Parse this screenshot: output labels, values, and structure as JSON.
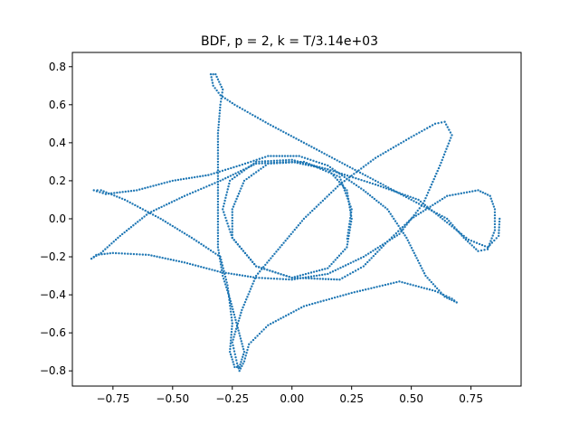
{
  "chart_data": {
    "type": "scatter",
    "title": "BDF, p = 2, k = T/3.14e+03",
    "xlabel": "",
    "ylabel": "",
    "xlim": [
      -0.92,
      0.96
    ],
    "ylim": [
      -0.88,
      0.875
    ],
    "xticks": [
      -0.75,
      -0.5,
      -0.25,
      0.0,
      0.25,
      0.5,
      0.75
    ],
    "xtick_labels": [
      "−0.75",
      "−0.50",
      "−0.25",
      "0.00",
      "0.25",
      "0.50",
      "0.75"
    ],
    "yticks": [
      -0.8,
      -0.6,
      -0.4,
      -0.2,
      0.0,
      0.2,
      0.4,
      0.6,
      0.8
    ],
    "ytick_labels": [
      "−0.8",
      "−0.6",
      "−0.4",
      "−0.2",
      "0.0",
      "0.2",
      "0.4",
      "0.6",
      "0.8"
    ],
    "grid": false,
    "legend": "none",
    "series": [
      {
        "color": "#1f77b4",
        "points": [
          [
            0.87,
            0.0
          ],
          [
            0.866,
            -0.09
          ],
          [
            0.82,
            -0.15
          ],
          [
            0.74,
            -0.11
          ],
          [
            0.65,
            -0.02
          ],
          [
            0.53,
            0.1
          ],
          [
            0.35,
            0.18
          ],
          [
            0.15,
            0.26
          ],
          [
            0.0,
            0.3
          ],
          [
            -0.15,
            0.29
          ],
          [
            -0.3,
            0.2
          ],
          [
            -0.45,
            0.12
          ],
          [
            -0.6,
            0.03
          ],
          [
            -0.72,
            -0.09
          ],
          [
            -0.8,
            -0.18
          ],
          [
            -0.84,
            -0.21
          ],
          [
            -0.82,
            -0.19
          ],
          [
            -0.75,
            -0.18
          ],
          [
            -0.6,
            -0.19
          ],
          [
            -0.45,
            -0.23
          ],
          [
            -0.3,
            -0.28
          ],
          [
            -0.15,
            -0.31
          ],
          [
            0.0,
            -0.32
          ],
          [
            0.15,
            -0.29
          ],
          [
            0.3,
            -0.2
          ],
          [
            0.45,
            -0.08
          ],
          [
            0.55,
            0.08
          ],
          [
            0.62,
            0.28
          ],
          [
            0.67,
            0.44
          ],
          [
            0.64,
            0.51
          ],
          [
            0.6,
            0.5
          ],
          [
            0.5,
            0.43
          ],
          [
            0.35,
            0.32
          ],
          [
            0.2,
            0.18
          ],
          [
            0.05,
            0.0
          ],
          [
            -0.05,
            -0.15
          ],
          [
            -0.15,
            -0.3
          ],
          [
            -0.21,
            -0.48
          ],
          [
            -0.25,
            -0.65
          ],
          [
            -0.23,
            -0.76
          ],
          [
            -0.22,
            -0.8
          ],
          [
            -0.2,
            -0.75
          ],
          [
            -0.18,
            -0.66
          ],
          [
            -0.1,
            -0.56
          ],
          [
            0.05,
            -0.46
          ],
          [
            0.25,
            -0.39
          ],
          [
            0.45,
            -0.33
          ],
          [
            0.6,
            -0.38
          ],
          [
            0.67,
            -0.42
          ],
          [
            0.69,
            -0.44
          ],
          [
            0.64,
            -0.41
          ],
          [
            0.56,
            -0.3
          ],
          [
            0.48,
            -0.1
          ],
          [
            0.4,
            0.05
          ],
          [
            0.3,
            0.15
          ],
          [
            0.15,
            0.28
          ],
          [
            0.03,
            0.33
          ],
          [
            -0.1,
            0.33
          ],
          [
            -0.22,
            0.28
          ],
          [
            -0.35,
            0.23
          ],
          [
            -0.5,
            0.2
          ],
          [
            -0.65,
            0.15
          ],
          [
            -0.78,
            0.13
          ],
          [
            -0.83,
            0.15
          ],
          [
            -0.8,
            0.15
          ],
          [
            -0.7,
            0.1
          ],
          [
            -0.55,
            0.0
          ],
          [
            -0.42,
            -0.1
          ],
          [
            -0.3,
            -0.2
          ],
          [
            -0.27,
            -0.35
          ],
          [
            -0.25,
            -0.55
          ],
          [
            -0.26,
            -0.7
          ],
          [
            -0.24,
            -0.78
          ],
          [
            -0.22,
            -0.78
          ],
          [
            -0.2,
            -0.7
          ],
          [
            -0.23,
            -0.56
          ],
          [
            -0.26,
            -0.42
          ],
          [
            -0.29,
            -0.3
          ],
          [
            -0.31,
            -0.15
          ],
          [
            -0.31,
            0.0
          ],
          [
            -0.31,
            0.15
          ],
          [
            -0.31,
            0.3
          ],
          [
            -0.31,
            0.45
          ],
          [
            -0.3,
            0.6
          ],
          [
            -0.29,
            0.68
          ],
          [
            -0.32,
            0.76
          ],
          [
            -0.34,
            0.76
          ],
          [
            -0.33,
            0.7
          ],
          [
            -0.3,
            0.65
          ],
          [
            -0.24,
            0.6
          ],
          [
            -0.1,
            0.5
          ],
          [
            0.05,
            0.4
          ],
          [
            0.2,
            0.3
          ],
          [
            0.35,
            0.2
          ],
          [
            0.5,
            0.1
          ],
          [
            0.65,
            0.0
          ],
          [
            0.72,
            -0.1
          ],
          [
            0.78,
            -0.17
          ],
          [
            0.82,
            -0.16
          ],
          [
            0.85,
            -0.06
          ],
          [
            0.85,
            0.05
          ],
          [
            0.83,
            0.12
          ],
          [
            0.78,
            0.15
          ],
          [
            0.65,
            0.12
          ],
          [
            0.5,
            0.0
          ],
          [
            0.4,
            -0.12
          ],
          [
            0.3,
            -0.25
          ],
          [
            0.2,
            -0.32
          ],
          [
            0.0,
            -0.31
          ],
          [
            -0.15,
            -0.25
          ],
          [
            -0.25,
            -0.1
          ],
          [
            -0.29,
            0.05
          ],
          [
            -0.26,
            0.2
          ],
          [
            -0.15,
            0.3
          ],
          [
            0.0,
            0.31
          ],
          [
            0.15,
            0.26
          ],
          [
            0.23,
            0.15
          ],
          [
            0.25,
            0.0
          ],
          [
            0.23,
            -0.15
          ],
          [
            0.15,
            -0.26
          ],
          [
            0.0,
            -0.31
          ],
          [
            -0.15,
            -0.25
          ],
          [
            -0.25,
            -0.1
          ],
          [
            -0.25,
            0.05
          ],
          [
            -0.2,
            0.2
          ],
          [
            -0.1,
            0.29
          ],
          [
            0.05,
            0.3
          ],
          [
            0.2,
            0.22
          ],
          [
            0.25,
            0.05
          ],
          [
            0.23,
            -0.12
          ]
        ]
      }
    ]
  }
}
